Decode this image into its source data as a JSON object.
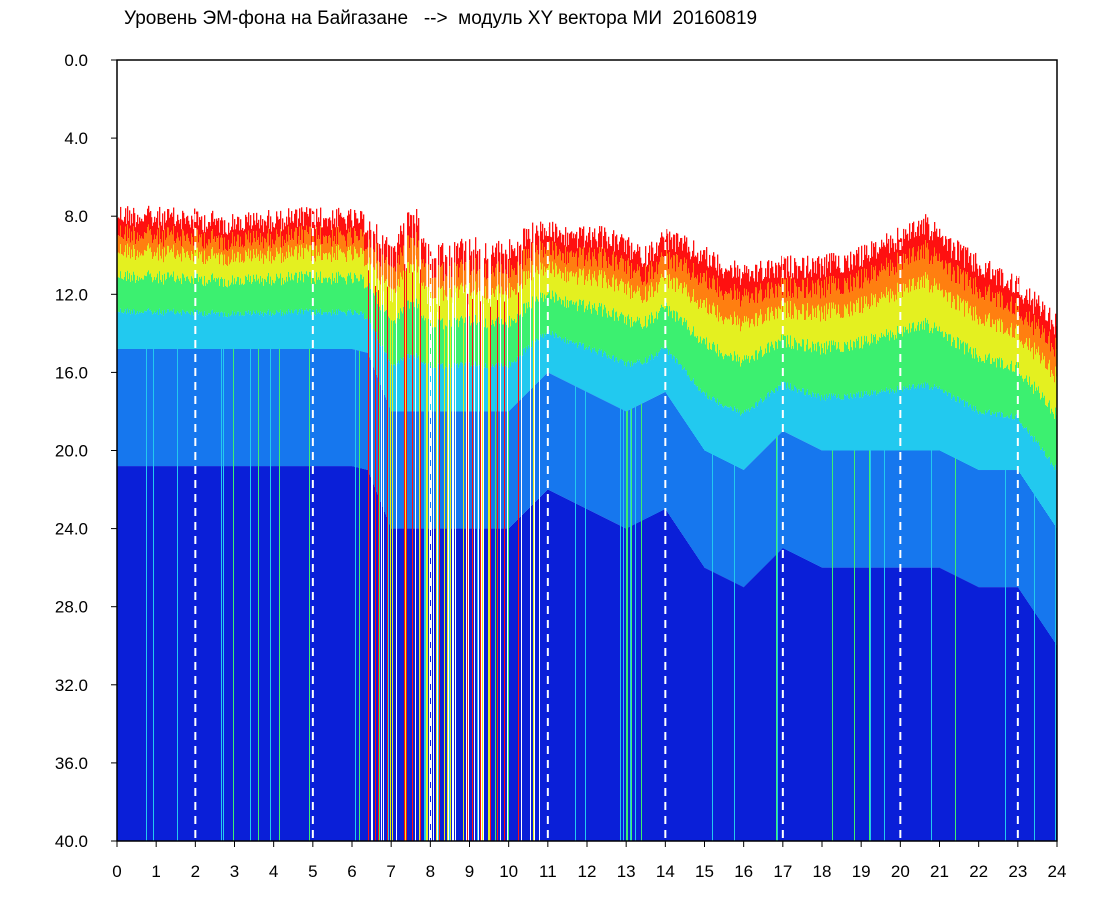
{
  "chart_data": {
    "type": "heatmap",
    "title": "Уровень ЭМ-фона на Байгазане   -->  модуль XY вектора МИ  20160819",
    "xlabel": "",
    "ylabel": "",
    "x_ticks": [
      "0",
      "1",
      "2",
      "3",
      "4",
      "5",
      "6",
      "7",
      "8",
      "9",
      "10",
      "11",
      "12",
      "13",
      "14",
      "15",
      "16",
      "17",
      "18",
      "19",
      "20",
      "21",
      "22",
      "23",
      "24"
    ],
    "y_ticks": [
      "0.0",
      "4.0",
      "8.0",
      "12.0",
      "16.0",
      "20.0",
      "24.0",
      "28.0",
      "32.0",
      "36.0",
      "40.0"
    ],
    "xlim": [
      0,
      24
    ],
    "ylim": [
      0,
      40
    ],
    "y_axis_inverted": true,
    "grid": "dashed white vertical lines at every odd-spaced 3-hour mark",
    "grid_lines_x": [
      2,
      5,
      8,
      11,
      14,
      17,
      20,
      23
    ],
    "colorscale": [
      "#0a1fd8",
      "#1677ee",
      "#22c9ef",
      "#3cf070",
      "#e4f020",
      "#ff7f10",
      "#ff1010"
    ],
    "upper_edge_estimate": {
      "hour": [
        0,
        1,
        2,
        3,
        4,
        5,
        6,
        6.4,
        7,
        7.6,
        8,
        9,
        10,
        10.8,
        11.5,
        12.5,
        13.5,
        14,
        15,
        16,
        17,
        18,
        19,
        20,
        20.6,
        21,
        22,
        23,
        24
      ],
      "value": [
        8.3,
        8.5,
        8.6,
        8.8,
        8.6,
        8.5,
        8.6,
        8.8,
        10,
        8.2,
        10.5,
        10,
        10.2,
        9,
        9.5,
        9.5,
        10.5,
        9.5,
        10.5,
        11.5,
        11,
        11,
        10.5,
        9.5,
        8.8,
        9.5,
        11,
        12,
        14
      ]
    },
    "blue_boundary_estimate": {
      "hour": [
        0,
        1,
        2,
        3,
        4,
        5,
        6,
        6.4,
        7,
        8,
        9,
        10,
        11,
        12,
        13,
        14,
        15,
        16,
        17,
        18,
        19,
        20,
        21,
        22,
        23,
        24
      ],
      "value": [
        14.8,
        14.8,
        14.8,
        14.8,
        14.8,
        14.8,
        14.8,
        15,
        18,
        18,
        18,
        18,
        16,
        17,
        18,
        17,
        20,
        21,
        19,
        20,
        20,
        20,
        20,
        21,
        21,
        24
      ]
    }
  }
}
